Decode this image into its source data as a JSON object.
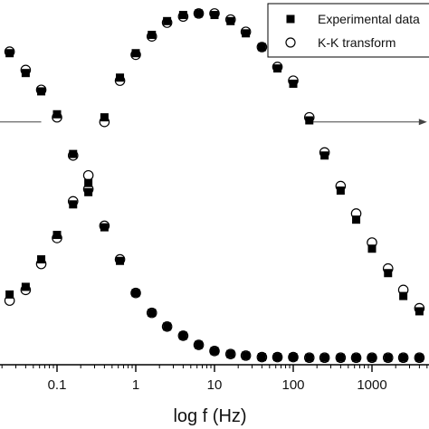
{
  "chart_data": {
    "type": "scatter",
    "xlabel": "log f (Hz)",
    "x_scale": "log",
    "xlim": [
      0.01,
      5000
    ],
    "x_ticks": [
      {
        "value": 0.1,
        "label": "0.1"
      },
      {
        "value": 1,
        "label": "1"
      },
      {
        "value": 10,
        "label": "10"
      },
      {
        "value": 100,
        "label": "100"
      },
      {
        "value": 1000,
        "label": "1000"
      }
    ],
    "ylim": [
      -1,
      11
    ],
    "legend_position": "top-right",
    "series": [
      {
        "name": "Experimental data",
        "marker": "filled-square",
        "color": "#000000",
        "curves": [
          {
            "x": [
              0.025,
              0.04,
              0.063,
              0.1,
              0.16,
              0.25,
              0.4,
              0.63,
              1,
              1.6,
              2.5,
              4,
              6.3,
              10,
              16,
              25,
              40,
              63,
              100,
              160,
              250,
              400,
              630,
              1000,
              1600,
              2500,
              4000
            ],
            "y": [
              9.2,
              8.55,
              7.95,
              7.2,
              5.9,
              4.95,
              3.5,
              2.4,
              1.35,
              0.7,
              0.25,
              -0.05,
              -0.35,
              -0.55,
              -0.65,
              -0.7,
              -0.75,
              -0.75,
              -0.75,
              -0.77,
              -0.77,
              -0.77,
              -0.77,
              -0.77,
              -0.77,
              -0.77,
              -0.77
            ]
          },
          {
            "x": [
              0.025,
              0.04,
              0.063,
              0.1,
              0.16,
              0.25,
              0.4,
              0.63,
              1,
              1.6,
              2.5,
              4,
              6.3,
              10,
              16,
              25,
              40,
              63,
              100,
              160,
              250,
              400,
              630,
              1000,
              1600,
              2500,
              4000
            ],
            "y": [
              1.3,
              1.55,
              2.45,
              3.25,
              4.25,
              4.65,
              7.1,
              8.4,
              9.2,
              9.8,
              10.25,
              10.45,
              10.5,
              10.45,
              10.25,
              9.85,
              9.4,
              8.7,
              8.2,
              7.0,
              5.85,
              4.7,
              3.75,
              2.8,
              2.0,
              1.25,
              0.75
            ]
          }
        ]
      },
      {
        "name": "K-K transform",
        "marker": "open-circle",
        "color": "#000000",
        "curves": [
          {
            "x": [
              0.025,
              0.04,
              0.063,
              0.1,
              0.16,
              0.25,
              0.4,
              0.63,
              1,
              1.6,
              2.5,
              4,
              6.3,
              10,
              16,
              25,
              40,
              63,
              100,
              160,
              250,
              400,
              630,
              1000,
              1600,
              2500,
              4000
            ],
            "y": [
              9.25,
              8.65,
              8.0,
              7.1,
              5.85,
              5.2,
              3.55,
              2.45,
              1.35,
              0.7,
              0.25,
              -0.05,
              -0.35,
              -0.55,
              -0.65,
              -0.7,
              -0.75,
              -0.75,
              -0.75,
              -0.77,
              -0.77,
              -0.77,
              -0.77,
              -0.77,
              -0.77,
              -0.77,
              -0.77
            ]
          },
          {
            "x": [
              0.025,
              0.04,
              0.063,
              0.1,
              0.16,
              0.25,
              0.4,
              0.63,
              1,
              1.6,
              2.5,
              4,
              6.3,
              10,
              16,
              25,
              40,
              63,
              100,
              160,
              250,
              400,
              630,
              1000,
              1600,
              2500,
              4000
            ],
            "y": [
              1.1,
              1.45,
              2.3,
              3.15,
              4.35,
              4.75,
              6.95,
              8.3,
              9.15,
              9.75,
              10.2,
              10.4,
              10.5,
              10.5,
              10.3,
              9.9,
              9.4,
              8.75,
              8.3,
              7.1,
              5.95,
              4.85,
              3.95,
              3.0,
              2.15,
              1.45,
              0.85
            ]
          }
        ]
      }
    ],
    "arrows": [
      {
        "points": [
          [
            0.01,
            6.95
          ],
          [
            0.063,
            6.95
          ]
        ],
        "head": false
      },
      {
        "points": [
          [
            160,
            6.95
          ],
          [
            5000,
            6.95
          ]
        ],
        "head": true
      }
    ]
  }
}
